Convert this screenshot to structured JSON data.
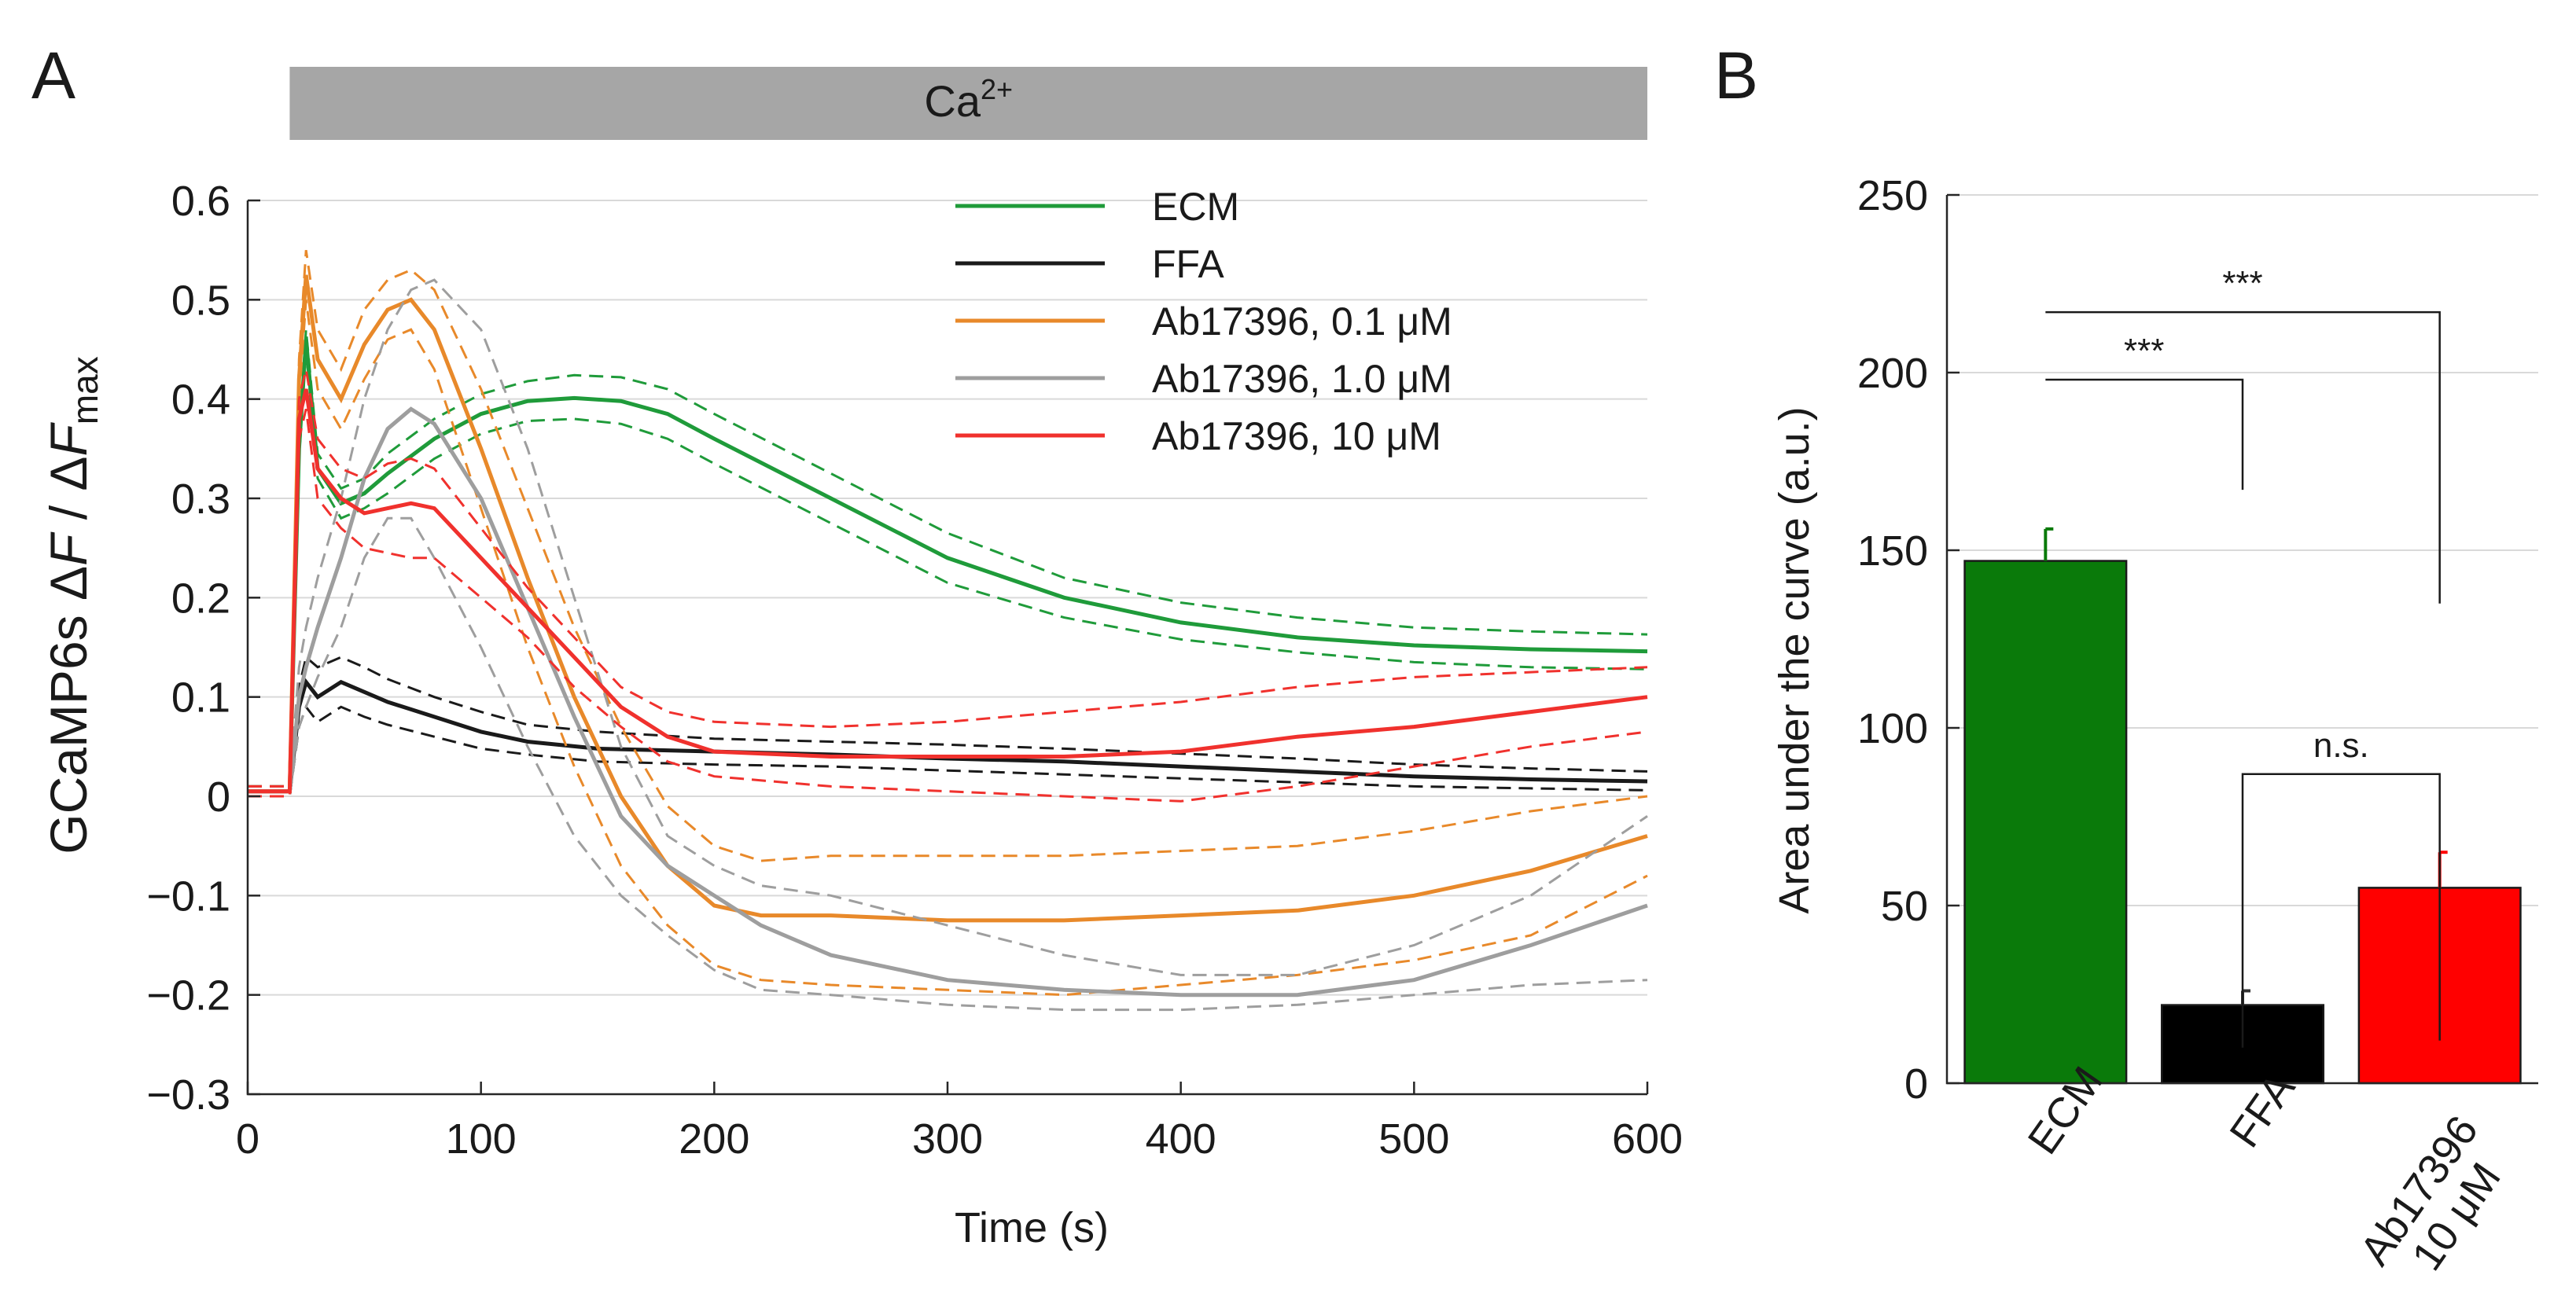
{
  "panels": {
    "a": "A",
    "b": "B"
  },
  "stimulus_bar": {
    "label": "Ca",
    "superscript": "2+",
    "start_s": 18,
    "end_s": 600,
    "color": "#a6a6a6"
  },
  "chart_data": [
    {
      "type": "line",
      "title": "",
      "xlabel": "Time (s)",
      "ylabel_parts": [
        "GCaMP6s Δ",
        "F",
        " / Δ",
        "F",
        "max"
      ],
      "xlim": [
        0,
        600
      ],
      "ylim": [
        -0.3,
        0.6
      ],
      "xticks": [
        0,
        100,
        200,
        300,
        400,
        500,
        600
      ],
      "xtick_labels": [
        "0",
        "100",
        "200",
        "300",
        "400",
        "500",
        "600"
      ],
      "yticks": [
        -0.3,
        -0.2,
        -0.1,
        0,
        0.1,
        0.2,
        0.3,
        0.4,
        0.5,
        0.6
      ],
      "ytick_labels": [
        "−0.3",
        "−0.2",
        "−0.1",
        "0",
        "0.1",
        "0.2",
        "0.3",
        "0.4",
        "0.5",
        "0.6"
      ],
      "grid": true,
      "legend_position": "top-right",
      "note": "solid lines = mean, dashed lines = ± SEM",
      "series": [
        {
          "name": "ECM",
          "color": "#1f9b3a",
          "x": [
            0,
            18,
            22,
            25,
            30,
            40,
            50,
            60,
            80,
            100,
            120,
            140,
            160,
            180,
            200,
            250,
            300,
            350,
            400,
            450,
            500,
            550,
            600
          ],
          "mean": [
            0.005,
            0.005,
            0.35,
            0.46,
            0.33,
            0.295,
            0.305,
            0.325,
            0.36,
            0.385,
            0.398,
            0.401,
            0.398,
            0.385,
            0.36,
            0.3,
            0.24,
            0.2,
            0.175,
            0.16,
            0.152,
            0.148,
            0.146
          ],
          "upper": [
            0.01,
            0.01,
            0.36,
            0.47,
            0.345,
            0.31,
            0.32,
            0.345,
            0.38,
            0.405,
            0.418,
            0.424,
            0.422,
            0.41,
            0.385,
            0.325,
            0.265,
            0.22,
            0.195,
            0.18,
            0.17,
            0.166,
            0.163
          ],
          "lower": [
            0.0,
            0.0,
            0.34,
            0.45,
            0.32,
            0.28,
            0.29,
            0.305,
            0.34,
            0.365,
            0.378,
            0.38,
            0.375,
            0.36,
            0.335,
            0.275,
            0.215,
            0.18,
            0.158,
            0.145,
            0.135,
            0.13,
            0.128
          ]
        },
        {
          "name": "FFA",
          "color": "#1a1a1a",
          "x": [
            0,
            18,
            22,
            25,
            30,
            40,
            50,
            60,
            80,
            100,
            120,
            150,
            200,
            250,
            300,
            350,
            400,
            450,
            500,
            550,
            600
          ],
          "mean": [
            0.005,
            0.005,
            0.09,
            0.115,
            0.1,
            0.115,
            0.105,
            0.095,
            0.08,
            0.065,
            0.055,
            0.048,
            0.045,
            0.042,
            0.038,
            0.035,
            0.03,
            0.025,
            0.02,
            0.017,
            0.015
          ],
          "upper": [
            0.01,
            0.01,
            0.11,
            0.14,
            0.13,
            0.14,
            0.13,
            0.118,
            0.1,
            0.085,
            0.072,
            0.065,
            0.058,
            0.055,
            0.052,
            0.048,
            0.043,
            0.038,
            0.032,
            0.028,
            0.025
          ],
          "lower": [
            0.0,
            0.0,
            0.07,
            0.09,
            0.075,
            0.09,
            0.08,
            0.072,
            0.06,
            0.048,
            0.042,
            0.035,
            0.032,
            0.03,
            0.026,
            0.022,
            0.018,
            0.014,
            0.01,
            0.008,
            0.006
          ]
        },
        {
          "name": "Ab17396, 0.1 μM",
          "color": "#e8892a",
          "x": [
            0,
            18,
            22,
            25,
            30,
            40,
            50,
            60,
            70,
            80,
            100,
            120,
            140,
            160,
            180,
            200,
            220,
            250,
            300,
            350,
            400,
            450,
            500,
            550,
            600
          ],
          "mean": [
            0.005,
            0.005,
            0.42,
            0.525,
            0.44,
            0.4,
            0.455,
            0.49,
            0.5,
            0.47,
            0.35,
            0.22,
            0.1,
            0.0,
            -0.07,
            -0.11,
            -0.12,
            -0.12,
            -0.125,
            -0.125,
            -0.12,
            -0.115,
            -0.1,
            -0.075,
            -0.04
          ],
          "upper": [
            0.01,
            0.01,
            0.44,
            0.55,
            0.47,
            0.43,
            0.49,
            0.52,
            0.53,
            0.51,
            0.41,
            0.29,
            0.17,
            0.07,
            -0.01,
            -0.05,
            -0.065,
            -0.06,
            -0.06,
            -0.06,
            -0.055,
            -0.05,
            -0.035,
            -0.015,
            0.0
          ],
          "lower": [
            0.0,
            0.0,
            0.4,
            0.5,
            0.41,
            0.37,
            0.42,
            0.46,
            0.47,
            0.43,
            0.29,
            0.15,
            0.03,
            -0.07,
            -0.13,
            -0.17,
            -0.185,
            -0.19,
            -0.195,
            -0.2,
            -0.19,
            -0.18,
            -0.165,
            -0.14,
            -0.08
          ]
        },
        {
          "name": "Ab17396, 1.0 μM",
          "color": "#9e9e9e",
          "x": [
            0,
            18,
            22,
            25,
            30,
            40,
            50,
            60,
            70,
            80,
            100,
            120,
            140,
            160,
            180,
            200,
            220,
            250,
            300,
            350,
            400,
            450,
            500,
            550,
            600
          ],
          "mean": [
            0.005,
            0.005,
            0.1,
            0.13,
            0.17,
            0.24,
            0.32,
            0.37,
            0.39,
            0.375,
            0.3,
            0.19,
            0.08,
            -0.02,
            -0.07,
            -0.1,
            -0.13,
            -0.16,
            -0.185,
            -0.195,
            -0.2,
            -0.2,
            -0.185,
            -0.15,
            -0.11
          ],
          "upper": [
            0.01,
            0.01,
            0.13,
            0.17,
            0.22,
            0.3,
            0.4,
            0.47,
            0.51,
            0.52,
            0.47,
            0.35,
            0.2,
            0.05,
            -0.04,
            -0.07,
            -0.09,
            -0.1,
            -0.13,
            -0.16,
            -0.18,
            -0.18,
            -0.15,
            -0.1,
            -0.02
          ],
          "lower": [
            0.0,
            0.0,
            0.07,
            0.09,
            0.12,
            0.17,
            0.24,
            0.28,
            0.28,
            0.24,
            0.15,
            0.05,
            -0.04,
            -0.1,
            -0.14,
            -0.175,
            -0.195,
            -0.2,
            -0.21,
            -0.215,
            -0.215,
            -0.21,
            -0.2,
            -0.19,
            -0.185
          ]
        },
        {
          "name": "Ab17396, 10 μM",
          "color": "#f0312d",
          "x": [
            0,
            18,
            22,
            25,
            30,
            40,
            50,
            60,
            70,
            80,
            100,
            120,
            140,
            160,
            180,
            200,
            250,
            300,
            350,
            400,
            450,
            500,
            550,
            600
          ],
          "mean": [
            0.005,
            0.005,
            0.38,
            0.41,
            0.33,
            0.3,
            0.285,
            0.29,
            0.295,
            0.29,
            0.24,
            0.19,
            0.14,
            0.09,
            0.06,
            0.045,
            0.04,
            0.04,
            0.04,
            0.045,
            0.06,
            0.07,
            0.085,
            0.1
          ],
          "upper": [
            0.01,
            0.01,
            0.4,
            0.43,
            0.36,
            0.33,
            0.32,
            0.335,
            0.34,
            0.33,
            0.27,
            0.21,
            0.16,
            0.11,
            0.085,
            0.075,
            0.07,
            0.075,
            0.085,
            0.095,
            0.11,
            0.12,
            0.125,
            0.13
          ],
          "lower": [
            0.0,
            0.0,
            0.36,
            0.39,
            0.3,
            0.27,
            0.25,
            0.245,
            0.24,
            0.24,
            0.2,
            0.16,
            0.11,
            0.07,
            0.035,
            0.02,
            0.01,
            0.005,
            0.0,
            -0.005,
            0.01,
            0.03,
            0.05,
            0.065
          ]
        }
      ]
    },
    {
      "type": "bar",
      "title": "",
      "xlabel": "",
      "ylabel": "Area under the curve (a.u.)",
      "ylim": [
        0,
        250
      ],
      "yticks": [
        0,
        50,
        100,
        150,
        200,
        250
      ],
      "ytick_labels": [
        "0",
        "50",
        "100",
        "150",
        "200",
        "250"
      ],
      "grid": true,
      "categories": [
        "ECM",
        "FFA",
        "Ab17396 10 μM"
      ],
      "category_lines": [
        [
          "ECM"
        ],
        [
          "FFA"
        ],
        [
          "Ab17396",
          "10 μM"
        ]
      ],
      "values": [
        147,
        22,
        55
      ],
      "errors": [
        9,
        4,
        10
      ],
      "colors": [
        "#0a7a0a",
        "#000000",
        "#ff0000"
      ],
      "significance": [
        {
          "from": 0,
          "to": 2,
          "label": "***",
          "y_start": 217,
          "y_end": 217,
          "left_drop": 0,
          "right_drop": 82
        },
        {
          "from": 0,
          "to": 1,
          "label": "***",
          "y_start": 198,
          "y_end": 198,
          "left_drop": 0,
          "right_drop": 31
        },
        {
          "from": 1,
          "to": 2,
          "label": "n.s.",
          "y_start": 87,
          "y_end": 87,
          "left_drop": 77,
          "right_drop": 75
        }
      ]
    }
  ]
}
